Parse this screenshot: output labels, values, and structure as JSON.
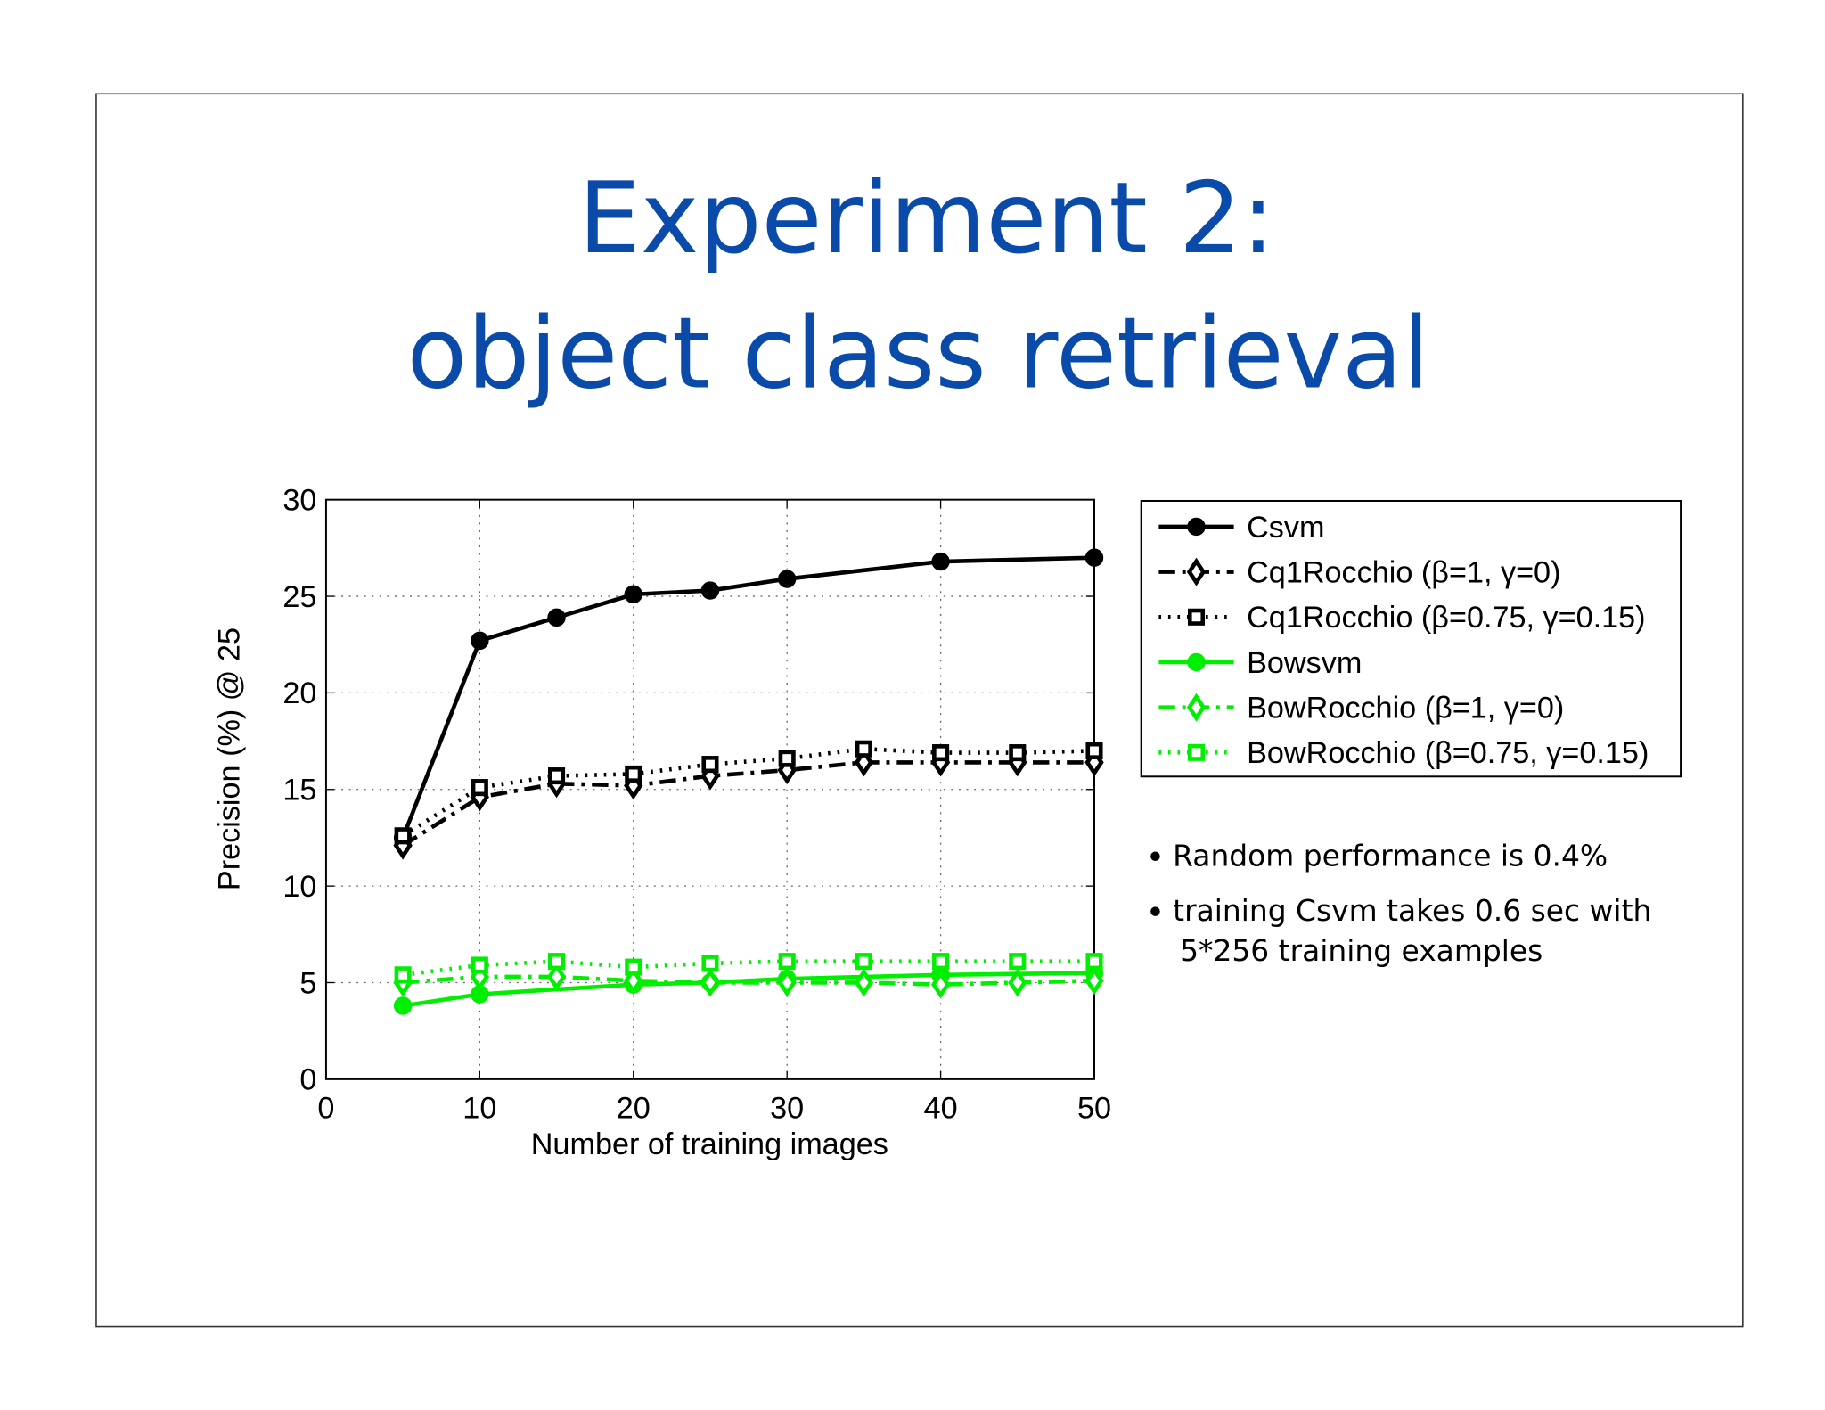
{
  "chart_data": {
    "type": "line",
    "title": [
      "Experiment 2:",
      "object class retrieval"
    ],
    "xlabel": "Number of training images",
    "ylabel": "Precision (%) @ 25",
    "xlim": [
      0,
      50
    ],
    "ylim": [
      0,
      30
    ],
    "xticks": [
      0,
      10,
      20,
      30,
      40,
      50
    ],
    "yticks": [
      0,
      5,
      10,
      15,
      20,
      25,
      30
    ],
    "grid": true,
    "legend": "right",
    "series": [
      {
        "name": "Csvm",
        "color": "#000000",
        "linestyle": "solid",
        "marker": "circle",
        "x": [
          5,
          10,
          15,
          20,
          25,
          30,
          40,
          50
        ],
        "values": [
          12.5,
          22.7,
          23.9,
          25.1,
          25.3,
          25.9,
          26.8,
          27.0
        ]
      },
      {
        "name": "Cq1Rocchio (β=1, γ=0)",
        "color": "#000000",
        "linestyle": "dashdot",
        "marker": "diamond",
        "x": [
          5,
          10,
          15,
          20,
          25,
          30,
          35,
          40,
          45,
          50
        ],
        "values": [
          12.1,
          14.6,
          15.3,
          15.2,
          15.7,
          16.0,
          16.4,
          16.4,
          16.4,
          16.4
        ]
      },
      {
        "name": "Cq1Rocchio (β=0.75, γ=0.15)",
        "color": "#000000",
        "linestyle": "dotted",
        "marker": "square",
        "x": [
          5,
          10,
          15,
          20,
          25,
          30,
          35,
          40,
          45,
          50
        ],
        "values": [
          12.6,
          15.1,
          15.7,
          15.8,
          16.3,
          16.6,
          17.1,
          16.9,
          16.9,
          17.0
        ]
      },
      {
        "name": "Bowsvm",
        "color": "#00ee00",
        "linestyle": "solid",
        "marker": "circle",
        "x": [
          5,
          10,
          20,
          25,
          30,
          40,
          50
        ],
        "values": [
          3.8,
          4.4,
          4.9,
          5.0,
          5.2,
          5.4,
          5.5
        ]
      },
      {
        "name": "BowRocchio (β=1, γ=0)",
        "color": "#00ee00",
        "linestyle": "dashdot",
        "marker": "diamond",
        "x": [
          5,
          10,
          15,
          20,
          25,
          30,
          35,
          40,
          45,
          50
        ],
        "values": [
          5.0,
          5.3,
          5.3,
          5.1,
          5.0,
          5.0,
          5.0,
          4.9,
          5.0,
          5.1
        ]
      },
      {
        "name": "BowRocchio (β=0.75, γ=0.15)",
        "color": "#00ee00",
        "linestyle": "dotted",
        "marker": "square",
        "x": [
          5,
          10,
          15,
          20,
          25,
          30,
          35,
          40,
          45,
          50
        ],
        "values": [
          5.4,
          5.9,
          6.1,
          5.8,
          6.0,
          6.1,
          6.1,
          6.1,
          6.1,
          6.1
        ]
      }
    ],
    "notes": [
      [
        "Random performance is 0.4%"
      ],
      [
        "training Csvm takes 0.6 sec with",
        "5*256 training examples"
      ]
    ]
  }
}
